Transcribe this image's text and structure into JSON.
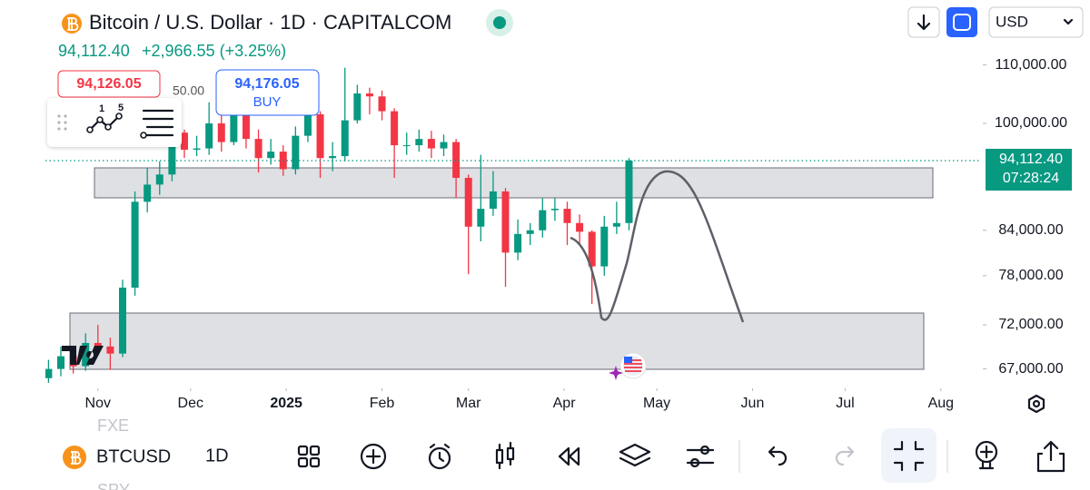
{
  "header": {
    "title": "Bitcoin / U.S. Dollar · 1D · CAPITALCOM",
    "price": "94,112.40",
    "change": "+2,966.55 (+3.25%)",
    "currency": "USD"
  },
  "trade": {
    "sell": "94,126.05",
    "buy": "94,176.05",
    "buy_label": "BUY",
    "hidden_value": "50.00"
  },
  "drawing_tools": {
    "label_1": "1",
    "label_5": "5"
  },
  "chart_data": {
    "type": "candlestick",
    "x": [
      -16,
      -12,
      -8,
      -4,
      0,
      4,
      8,
      12,
      16,
      20,
      24,
      28,
      32,
      36,
      40,
      44,
      48,
      52,
      56,
      60,
      64,
      68,
      72,
      76,
      80,
      84,
      88,
      92,
      96,
      100,
      104,
      108,
      112,
      116,
      120,
      124,
      128,
      132,
      136,
      140,
      144,
      148,
      152,
      156,
      160,
      164,
      168,
      172
    ],
    "open": [
      66000,
      67000,
      68400,
      67300,
      69900,
      69500,
      68700,
      76500,
      88000,
      90500,
      92000,
      98500,
      95800,
      96000,
      100000,
      97000,
      101500,
      97500,
      94500,
      95500,
      92800,
      98000,
      101500,
      94500,
      94800,
      100500,
      105000,
      104500,
      102000,
      96500,
      96500,
      97500,
      96000,
      97000,
      91500,
      84500,
      87000,
      89500,
      81000,
      83500,
      84000,
      86800,
      87000,
      85000,
      83800,
      79200,
      84500,
      85000
    ],
    "high": [
      68000,
      69500,
      69200,
      71000,
      72000,
      70500,
      77500,
      89500,
      93000,
      94000,
      99500,
      99000,
      98000,
      103500,
      101500,
      108000,
      102500,
      99000,
      97500,
      96500,
      99500,
      102500,
      102000,
      97000,
      109500,
      106500,
      106000,
      105500,
      102500,
      98500,
      99000,
      98800,
      98200,
      97500,
      92000,
      95000,
      92500,
      90000,
      85500,
      85000,
      88500,
      88500,
      88000,
      86200,
      84000,
      86000,
      88000,
      94500
    ],
    "low": [
      65500,
      66200,
      66500,
      66800,
      68500,
      66900,
      68300,
      75500,
      86500,
      89000,
      91000,
      94500,
      94800,
      95000,
      95500,
      96500,
      96000,
      92300,
      93500,
      91800,
      92000,
      97000,
      91500,
      92500,
      94000,
      100000,
      101500,
      100500,
      91500,
      95000,
      95500,
      94500,
      94800,
      88500,
      78200,
      82500,
      86000,
      76600,
      80000,
      82000,
      83000,
      85300,
      82000,
      82000,
      74500,
      78000,
      83500,
      84000
    ],
    "close": [
      67000,
      68400,
      67300,
      69900,
      69500,
      68700,
      76500,
      88000,
      90500,
      92000,
      98500,
      95800,
      96000,
      100000,
      97000,
      101500,
      97500,
      94500,
      95500,
      92800,
      98000,
      101500,
      94500,
      94800,
      100500,
      105000,
      104500,
      102000,
      96500,
      96500,
      97500,
      96000,
      97000,
      91500,
      84500,
      87000,
      89500,
      81000,
      83500,
      84000,
      86800,
      87000,
      85000,
      83800,
      79200,
      84500,
      85000,
      94112.4
    ],
    "up_color": "#089981",
    "down_color": "#f23645",
    "log_scale": true,
    "ylim": [
      65200,
      111900
    ],
    "yticks": [
      {
        "value": 67000,
        "label": "67,000.00"
      },
      {
        "value": 72000,
        "label": "72,000.00"
      },
      {
        "value": 78000,
        "label": "78,000.00"
      },
      {
        "value": 84000,
        "label": "84,000.00"
      },
      {
        "value": 100000,
        "label": "100,000.00"
      },
      {
        "value": 110000,
        "label": "110,000.00"
      }
    ],
    "xlim": [
      -17,
      286
    ],
    "xticks": [
      {
        "value": 0,
        "label": "Nov"
      },
      {
        "value": 30,
        "label": "Dec"
      },
      {
        "value": 61,
        "label": "2025"
      },
      {
        "value": 92,
        "label": "Feb"
      },
      {
        "value": 120,
        "label": "Mar"
      },
      {
        "value": 151,
        "label": "Apr"
      },
      {
        "value": 181,
        "label": "May"
      },
      {
        "value": 212,
        "label": "Jun"
      },
      {
        "value": 242,
        "label": "Jul"
      },
      {
        "value": 273,
        "label": "Aug"
      }
    ],
    "last_price_label": "94,112.40",
    "countdown": "07:28:24"
  },
  "bottom_bar": {
    "symbol": "BTCUSD",
    "interval": "1D",
    "watchlist": [
      "FXE",
      "SPY"
    ]
  }
}
